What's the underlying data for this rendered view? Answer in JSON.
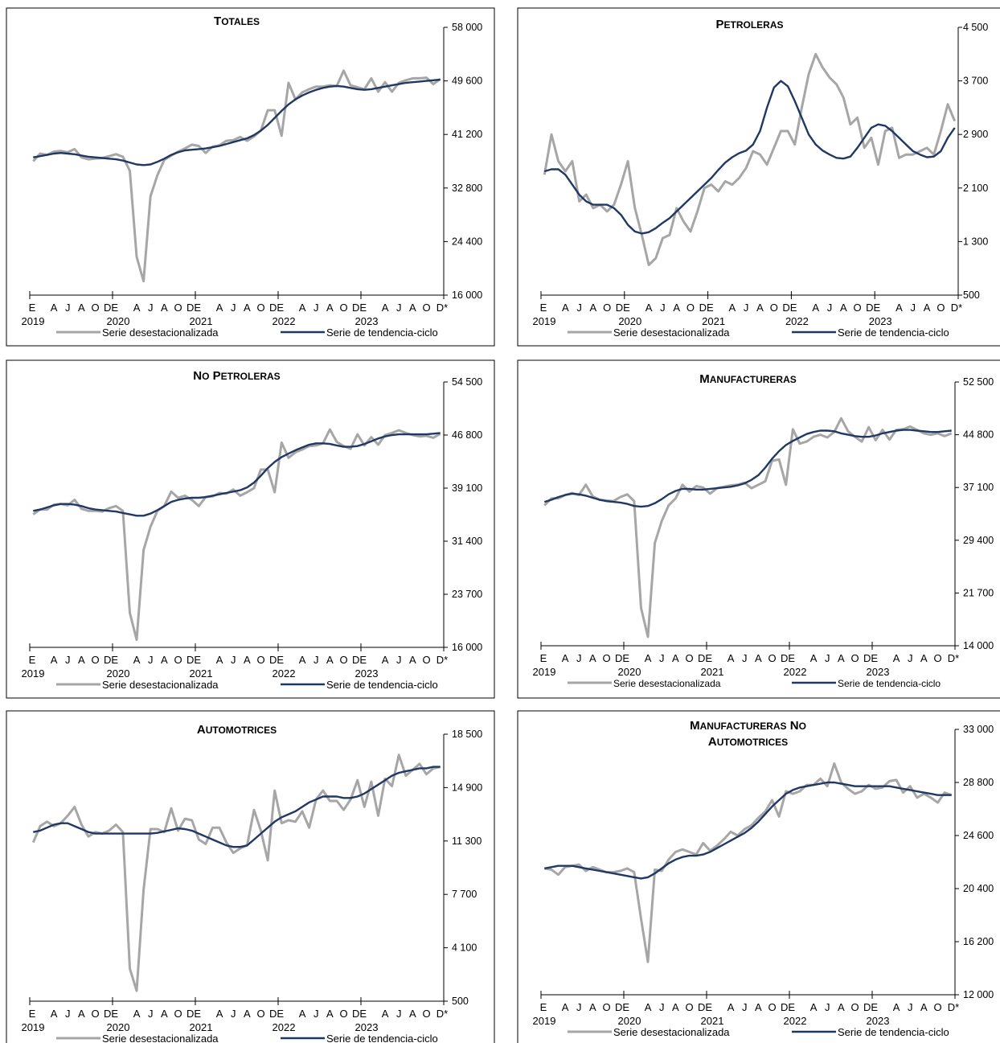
{
  "colors": {
    "seasonal": "#a6a6a6",
    "trend": "#1f3864",
    "axis": "#000000"
  },
  "x_axis": {
    "months": [
      "E",
      "A",
      "J",
      "A",
      "O",
      "DE",
      "A",
      "J",
      "A",
      "O",
      "DE",
      "A",
      "J",
      "A",
      "O",
      "DE",
      "A",
      "J",
      "A",
      "O",
      "DE",
      "A",
      "J",
      "A",
      "O",
      "D*"
    ],
    "years": [
      "2019",
      "2020",
      "2021",
      "2022",
      "2023"
    ]
  },
  "legend": {
    "seasonal": "Serie desestacionalizada",
    "trend": "Serie de tendencia-ciclo"
  },
  "chart_data": [
    {
      "type": "line",
      "title_lines": [
        "Totales"
      ],
      "yticks": [
        "16 000",
        "24 400",
        "32 800",
        "41 200",
        "49 600",
        "58 000"
      ],
      "ylim": [
        16000,
        58000
      ],
      "months": 60,
      "series": [
        {
          "name": "Serie desestacionalizada",
          "values": [
            37000,
            38200,
            38000,
            38500,
            38600,
            38400,
            38900,
            37600,
            37300,
            37400,
            37500,
            37800,
            38100,
            37700,
            35500,
            22000,
            18200,
            31500,
            34800,
            37200,
            37900,
            38500,
            39000,
            39600,
            39400,
            38300,
            39300,
            39500,
            40200,
            40300,
            40800,
            40200,
            40900,
            41800,
            45000,
            45000,
            41000,
            49300,
            46700,
            47800,
            48300,
            48700,
            48700,
            48900,
            48800,
            51200,
            48900,
            48600,
            48300,
            50000,
            47900,
            49400,
            47900,
            49300,
            49700,
            50000,
            50000,
            50100,
            49100,
            49900
          ]
        },
        {
          "name": "Serie de tendencia-ciclo",
          "values": [
            37600,
            37800,
            38000,
            38200,
            38300,
            38200,
            38100,
            37900,
            37700,
            37600,
            37500,
            37400,
            37300,
            37100,
            36800,
            36500,
            36400,
            36500,
            36900,
            37400,
            38000,
            38400,
            38700,
            38800,
            38900,
            39000,
            39200,
            39400,
            39700,
            40000,
            40300,
            40600,
            41100,
            41800,
            42700,
            43800,
            44900,
            45900,
            46700,
            47300,
            47800,
            48200,
            48500,
            48700,
            48800,
            48700,
            48500,
            48300,
            48200,
            48300,
            48500,
            48700,
            48900,
            49100,
            49300,
            49400,
            49500,
            49600,
            49700,
            49800
          ]
        }
      ]
    },
    {
      "type": "line",
      "title_lines": [
        "Petroleras"
      ],
      "yticks": [
        "500",
        "1 300",
        "2 100",
        "2 900",
        "3 700",
        "4 500"
      ],
      "ylim": [
        500,
        4500
      ],
      "months": 60,
      "series": [
        {
          "name": "Serie desestacionalizada",
          "values": [
            2300,
            2900,
            2500,
            2350,
            2500,
            1900,
            2000,
            1800,
            1850,
            1750,
            1850,
            2150,
            2500,
            1800,
            1400,
            950,
            1050,
            1350,
            1400,
            1800,
            1600,
            1450,
            1750,
            2100,
            2150,
            2050,
            2200,
            2150,
            2250,
            2400,
            2650,
            2600,
            2450,
            2700,
            2950,
            2950,
            2750,
            3300,
            3800,
            4100,
            3900,
            3750,
            3650,
            3450,
            3050,
            3150,
            2700,
            2850,
            2450,
            2950,
            3000,
            2550,
            2600,
            2600,
            2650,
            2700,
            2600,
            2950,
            3350,
            3100
          ]
        },
        {
          "name": "Serie de tendencia-ciclo",
          "values": [
            2350,
            2380,
            2380,
            2300,
            2150,
            2000,
            1900,
            1850,
            1850,
            1850,
            1800,
            1700,
            1550,
            1450,
            1420,
            1440,
            1500,
            1580,
            1650,
            1750,
            1850,
            1950,
            2050,
            2150,
            2250,
            2370,
            2480,
            2560,
            2620,
            2660,
            2750,
            2950,
            3300,
            3600,
            3700,
            3620,
            3400,
            3150,
            2900,
            2750,
            2660,
            2600,
            2550,
            2540,
            2570,
            2700,
            2850,
            3000,
            3050,
            3030,
            2950,
            2850,
            2750,
            2650,
            2600,
            2560,
            2570,
            2650,
            2850,
            3000
          ]
        }
      ]
    },
    {
      "type": "line",
      "title_lines": [
        "No Petroleras"
      ],
      "yticks": [
        "16 000",
        "23 700",
        "31 400",
        "39 100",
        "46 800",
        "54 500"
      ],
      "ylim": [
        16000,
        54500
      ],
      "months": 60,
      "series": [
        {
          "name": "Serie desestacionalizada",
          "values": [
            35300,
            36000,
            36000,
            36700,
            36800,
            36600,
            37400,
            36100,
            35800,
            35800,
            35700,
            36200,
            36500,
            35800,
            21000,
            17100,
            30100,
            33500,
            35800,
            36500,
            38600,
            37700,
            38000,
            37400,
            36500,
            37800,
            37900,
            38400,
            38300,
            38900,
            38000,
            38500,
            39100,
            41800,
            41800,
            38500,
            45700,
            43500,
            44300,
            44700,
            45200,
            45300,
            45600,
            47600,
            45800,
            45200,
            44800,
            46900,
            45300,
            46500,
            45400,
            46800,
            47100,
            47500,
            47100,
            46800,
            46600,
            46700,
            46400,
            47000
          ]
        },
        {
          "name": "Serie de tendencia-ciclo",
          "values": [
            35800,
            36000,
            36300,
            36600,
            36800,
            36800,
            36700,
            36500,
            36200,
            36000,
            35900,
            35800,
            35700,
            35500,
            35300,
            35100,
            35100,
            35400,
            35900,
            36500,
            37100,
            37400,
            37600,
            37700,
            37700,
            37800,
            38000,
            38200,
            38400,
            38600,
            38800,
            39200,
            39900,
            40900,
            42000,
            42900,
            43600,
            44100,
            44600,
            45000,
            45400,
            45600,
            45600,
            45500,
            45300,
            45100,
            45100,
            45200,
            45500,
            45900,
            46300,
            46600,
            46800,
            46900,
            46900,
            46900,
            46900,
            46900,
            47000,
            47100
          ]
        }
      ]
    },
    {
      "type": "line",
      "title_lines": [
        "Manufactureras"
      ],
      "yticks": [
        "14 000",
        "21 700",
        "29 400",
        "37 100",
        "44 800",
        "52 500"
      ],
      "ylim": [
        14000,
        52500
      ],
      "months": 60,
      "series": [
        {
          "name": "Serie desestacionalizada",
          "values": [
            34500,
            35500,
            35500,
            36000,
            36300,
            36000,
            37500,
            35800,
            35300,
            35200,
            35100,
            35700,
            36100,
            35100,
            19500,
            15300,
            29000,
            32200,
            34500,
            35500,
            37500,
            36500,
            37300,
            37100,
            36200,
            37000,
            37200,
            37400,
            37500,
            37800,
            37000,
            37500,
            38000,
            41000,
            41200,
            37500,
            45600,
            43500,
            43800,
            44500,
            44800,
            44400,
            45200,
            47200,
            45300,
            44500,
            43800,
            45900,
            44000,
            45500,
            44100,
            45500,
            45600,
            46000,
            45500,
            45000,
            44800,
            45000,
            44600,
            45000
          ]
        },
        {
          "name": "Serie de tendencia-ciclo",
          "values": [
            35000,
            35300,
            35700,
            36000,
            36200,
            36100,
            35900,
            35600,
            35300,
            35100,
            35000,
            34900,
            34700,
            34400,
            34300,
            34400,
            34800,
            35400,
            36100,
            36600,
            36900,
            36900,
            36800,
            36800,
            36900,
            37000,
            37100,
            37200,
            37400,
            37700,
            38200,
            38900,
            40000,
            41300,
            42400,
            43300,
            43900,
            44400,
            44900,
            45200,
            45400,
            45400,
            45300,
            45000,
            44800,
            44600,
            44500,
            44500,
            44700,
            45000,
            45200,
            45400,
            45500,
            45500,
            45400,
            45300,
            45200,
            45200,
            45300,
            45400
          ]
        }
      ]
    },
    {
      "type": "line",
      "title_lines": [
        "Automotrices"
      ],
      "yticks": [
        "500",
        "4 100",
        "7 700",
        "11 300",
        "14 900",
        "18 500"
      ],
      "ylim": [
        500,
        18500
      ],
      "months": 60,
      "series": [
        {
          "name": "Serie desestacionalizada",
          "values": [
            11200,
            12300,
            12600,
            12300,
            12500,
            13000,
            13600,
            12400,
            11600,
            11900,
            11800,
            12000,
            12400,
            11900,
            2700,
            1200,
            8000,
            12100,
            12100,
            11900,
            13500,
            12000,
            12800,
            12700,
            11400,
            11100,
            12200,
            12200,
            11200,
            10500,
            10800,
            11000,
            13400,
            12000,
            10000,
            14700,
            12500,
            12700,
            12600,
            13300,
            12200,
            14100,
            14700,
            14000,
            14000,
            13400,
            14100,
            15400,
            13600,
            15300,
            13000,
            15500,
            15000,
            17100,
            15700,
            16100,
            16500,
            15800,
            16200,
            16300
          ]
        },
        {
          "name": "Serie de tendencia-ciclo",
          "values": [
            11900,
            12000,
            12200,
            12400,
            12500,
            12500,
            12300,
            12100,
            11900,
            11800,
            11800,
            11800,
            11800,
            11800,
            11800,
            11800,
            11800,
            11800,
            11850,
            11950,
            12050,
            12150,
            12100,
            12000,
            11800,
            11600,
            11400,
            11200,
            11000,
            10900,
            10900,
            11000,
            11400,
            11800,
            12200,
            12600,
            12900,
            13100,
            13300,
            13600,
            13900,
            14100,
            14300,
            14300,
            14300,
            14200,
            14200,
            14300,
            14500,
            14800,
            15100,
            15400,
            15700,
            15900,
            16000,
            16100,
            16200,
            16200,
            16300,
            16300
          ]
        }
      ]
    },
    {
      "type": "line",
      "title_lines": [
        "Manufactureras  No",
        "Automotrices"
      ],
      "yticks": [
        "12 000",
        "16 200",
        "20 400",
        "24 600",
        "28 800",
        "33 000"
      ],
      "ylim": [
        12000,
        33000
      ],
      "months": 60,
      "series": [
        {
          "name": "Serie desestacionalizada",
          "values": [
            22000,
            21900,
            21500,
            22100,
            22200,
            22300,
            21800,
            22100,
            21900,
            21700,
            21700,
            21800,
            22000,
            21700,
            18000,
            14600,
            21900,
            21800,
            22700,
            23300,
            23500,
            23300,
            23100,
            24000,
            23400,
            23800,
            24300,
            24900,
            24600,
            25100,
            25400,
            26000,
            26500,
            27400,
            26100,
            28100,
            27900,
            28100,
            28600,
            28600,
            29100,
            28500,
            30300,
            28800,
            28300,
            27900,
            28100,
            28600,
            28300,
            28400,
            28900,
            29000,
            28000,
            28500,
            27600,
            27900,
            27600,
            27200,
            28000,
            27800
          ]
        },
        {
          "name": "Serie de tendencia-ciclo",
          "values": [
            22000,
            22100,
            22200,
            22200,
            22200,
            22100,
            22000,
            21900,
            21800,
            21700,
            21600,
            21500,
            21400,
            21300,
            21200,
            21300,
            21600,
            22000,
            22400,
            22700,
            22900,
            23000,
            23000,
            23100,
            23300,
            23600,
            23900,
            24200,
            24500,
            24800,
            25200,
            25700,
            26300,
            26900,
            27400,
            27900,
            28200,
            28400,
            28500,
            28600,
            28700,
            28800,
            28800,
            28700,
            28600,
            28500,
            28500,
            28500,
            28500,
            28500,
            28500,
            28400,
            28300,
            28200,
            28100,
            28000,
            27900,
            27800,
            27800,
            27800
          ]
        }
      ]
    }
  ]
}
